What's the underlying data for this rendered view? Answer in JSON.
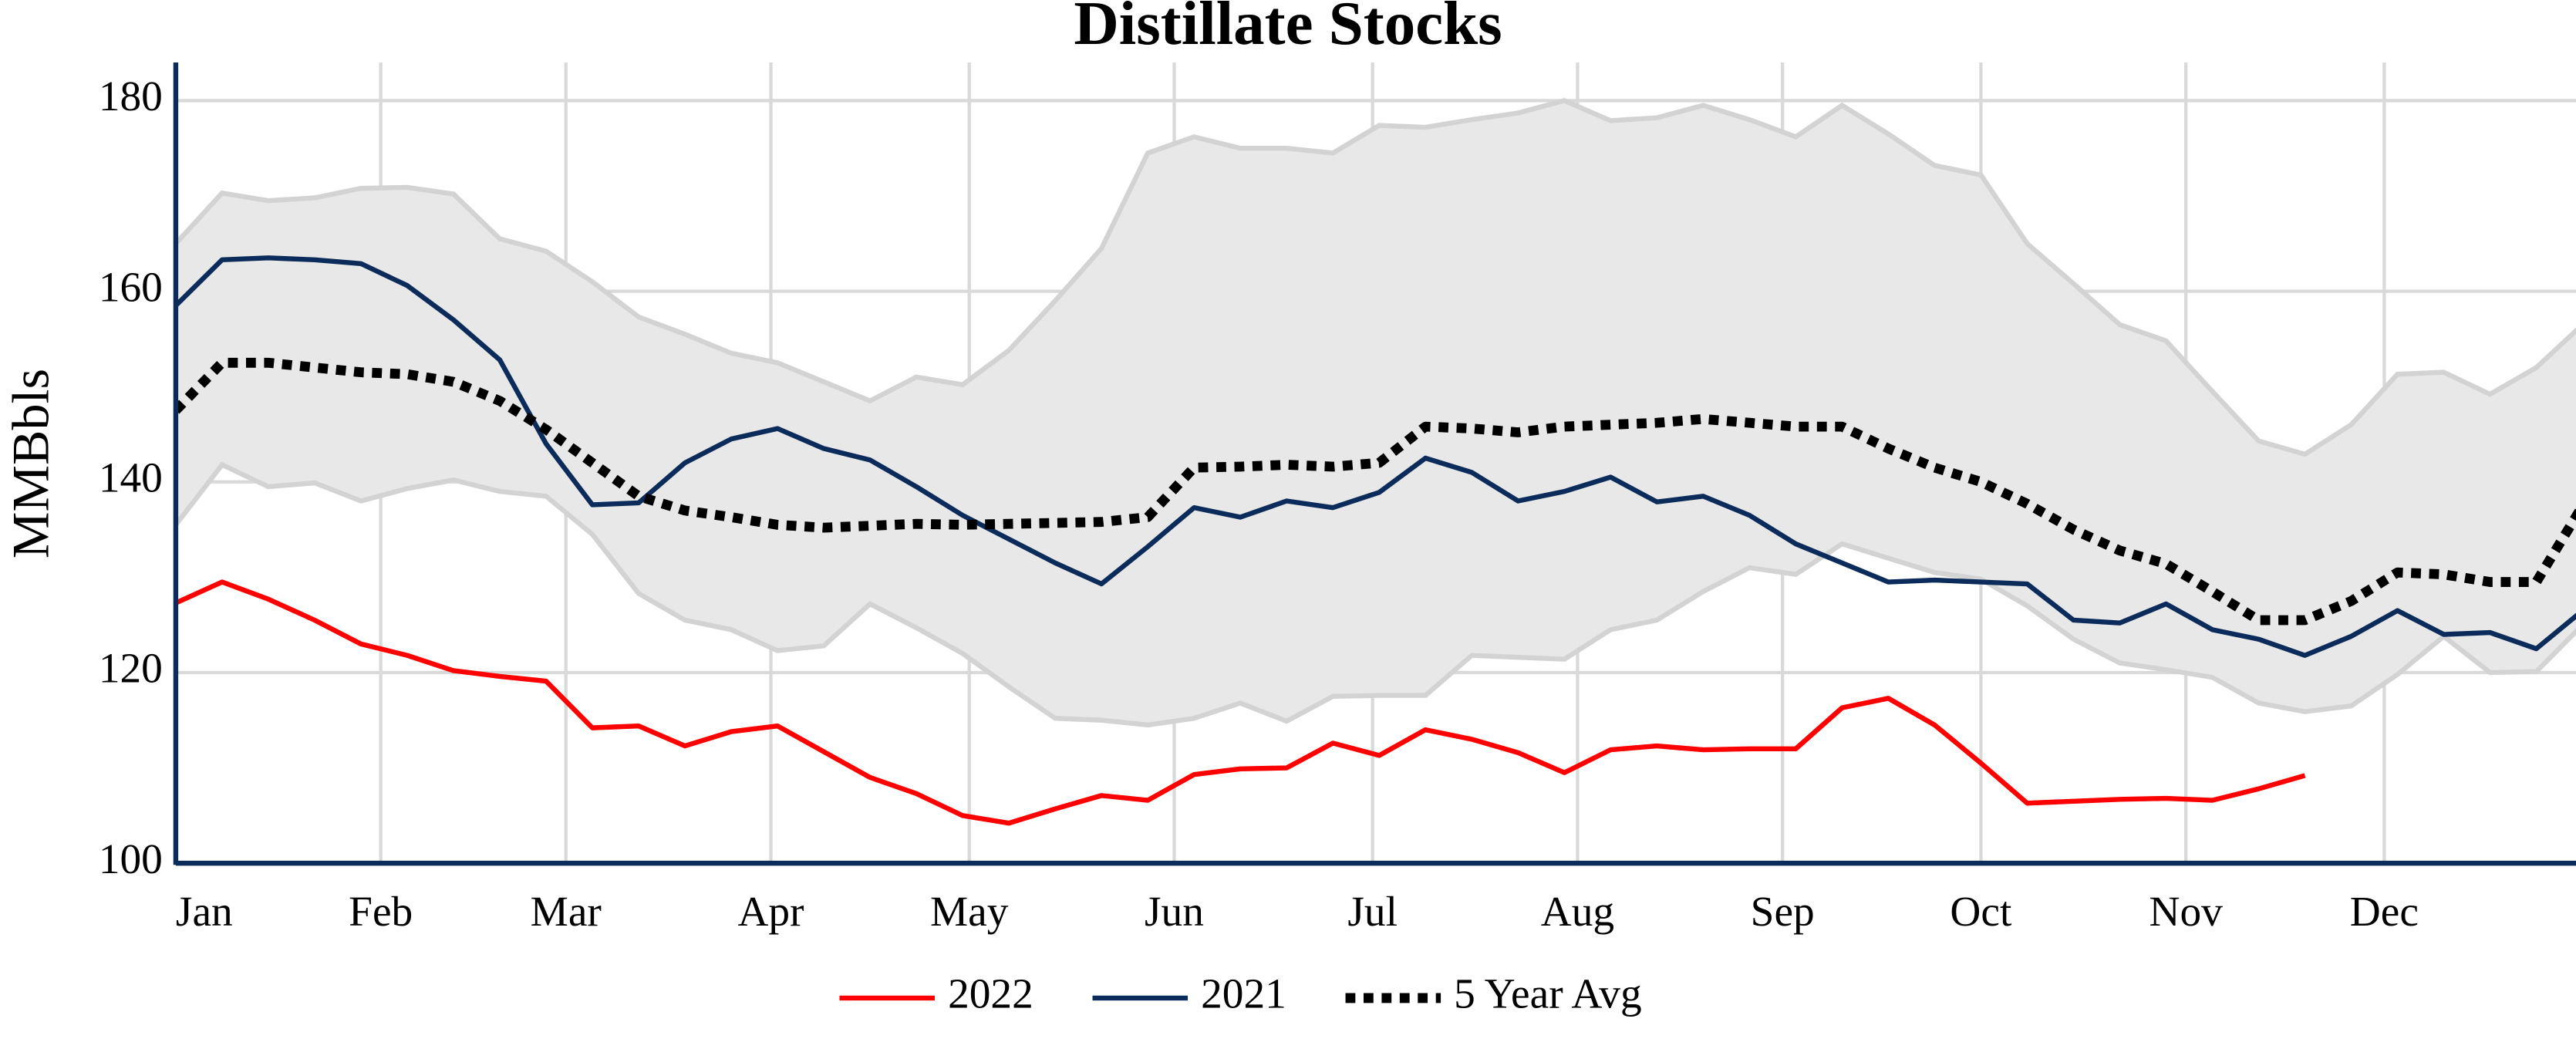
{
  "chart_data": {
    "type": "line",
    "title": "Distillate Stocks",
    "y_label": "MMBbls",
    "x": [
      0,
      7,
      14,
      21,
      28,
      35,
      42,
      49,
      56,
      63,
      70,
      77,
      84,
      91,
      98,
      105,
      112,
      119,
      126,
      133,
      140,
      147,
      154,
      161,
      168,
      175,
      182,
      189,
      196,
      203,
      210,
      217,
      224,
      231,
      238,
      245,
      252,
      259,
      266,
      273,
      280,
      287,
      294,
      301,
      308,
      315,
      322,
      329,
      336,
      343,
      350,
      357,
      364
    ],
    "xlim": [
      0,
      363
    ],
    "xticks": [
      {
        "value": 0,
        "label": "Jan"
      },
      {
        "value": 31,
        "label": "Feb"
      },
      {
        "value": 59,
        "label": "Mar"
      },
      {
        "value": 90,
        "label": "Apr"
      },
      {
        "value": 120,
        "label": "May"
      },
      {
        "value": 151,
        "label": "Jun"
      },
      {
        "value": 181,
        "label": "Jul"
      },
      {
        "value": 212,
        "label": "Aug"
      },
      {
        "value": 243,
        "label": "Sep"
      },
      {
        "value": 273,
        "label": "Oct"
      },
      {
        "value": 304,
        "label": "Nov"
      },
      {
        "value": 334,
        "label": "Dec"
      }
    ],
    "ylim": [
      100,
      184
    ],
    "yticks": [
      100,
      120,
      140,
      160,
      180
    ],
    "grid": true,
    "legend": "bottom",
    "band": {
      "color": "#e8e8e8",
      "edge_color": "#d3d3d3",
      "upper": [
        165,
        170.3,
        169.5,
        169.8,
        170.8,
        170.9,
        170.2,
        165.5,
        164.2,
        161,
        157.3,
        155.5,
        153.5,
        152.5,
        150.5,
        148.5,
        151,
        150.2,
        153.8,
        159,
        164.5,
        174.5,
        176.2,
        175,
        175,
        174.5,
        177.4,
        177.2,
        178,
        178.7,
        180,
        177.9,
        178.2,
        179.5,
        178,
        176.2,
        179.5,
        176.5,
        173.2,
        172.2,
        165,
        160.8,
        156.5,
        154.8,
        149.5,
        144.3,
        142.9,
        146,
        151.3,
        151.5,
        149.2,
        152,
        156.5
      ],
      "lower": [
        135.5,
        141.8,
        139.5,
        139.9,
        138,
        139.3,
        140.2,
        139,
        138.5,
        134.5,
        128.3,
        125.5,
        124.5,
        122.3,
        122.8,
        127.2,
        124.7,
        122,
        118.5,
        115.2,
        115,
        114.5,
        115.2,
        116.8,
        114.9,
        117.5,
        117.6,
        117.6,
        121.8,
        121.6,
        121.4,
        124.5,
        125.5,
        128.5,
        131,
        130.3,
        133.5,
        132,
        130.5,
        129.8,
        127,
        123.5,
        121,
        120.3,
        119.5,
        116.8,
        115.9,
        116.5,
        119.8,
        123.8,
        120,
        120.1,
        125
      ]
    },
    "series": [
      {
        "name": "2022",
        "color": "#ff0000",
        "dash": "solid",
        "values": [
          127.3,
          129.5,
          127.7,
          125.5,
          123,
          121.8,
          120.2,
          119.6,
          119.1,
          114.2,
          114.4,
          112.3,
          113.8,
          114.4,
          111.7,
          109,
          107.3,
          105,
          104.2,
          105.7,
          107.1,
          106.6,
          109.3,
          109.9,
          110,
          112.6,
          111.3,
          114,
          113,
          111.6,
          109.5,
          111.9,
          112.3,
          111.9,
          112,
          112,
          116.3,
          117.3,
          114.5,
          110.5,
          106.3,
          106.5,
          106.7,
          106.8,
          106.6,
          107.8,
          109.2,
          null,
          null,
          null,
          null,
          null,
          null
        ]
      },
      {
        "name": "2021",
        "color": "#0b2c5a",
        "dash": "solid",
        "values": [
          158.5,
          163.3,
          163.5,
          163.3,
          162.9,
          160.6,
          157,
          152.8,
          144,
          137.6,
          137.8,
          142,
          144.5,
          145.6,
          143.5,
          142.3,
          139.5,
          136.5,
          134,
          131.5,
          129.3,
          133.2,
          137.3,
          136.3,
          138,
          137.3,
          138.9,
          142.5,
          141,
          138,
          139,
          140.5,
          137.9,
          138.5,
          136.5,
          133.5,
          131.5,
          129.5,
          129.7,
          129.5,
          129.3,
          125.5,
          125.2,
          127.2,
          124.5,
          123.5,
          121.8,
          123.8,
          126.5,
          124,
          124.2,
          122.5,
          126.5
        ]
      },
      {
        "name": "5 Year Avg",
        "color": "#000000",
        "dash": "dotted",
        "values": [
          147.5,
          152.5,
          152.5,
          152,
          151.5,
          151.3,
          150.5,
          148.5,
          145.5,
          142,
          138.5,
          137,
          136.3,
          135.5,
          135.2,
          135.4,
          135.6,
          135.5,
          135.6,
          135.7,
          135.8,
          136.3,
          141.5,
          141.6,
          141.8,
          141.6,
          142,
          145.8,
          145.6,
          145.2,
          145.8,
          146,
          146.2,
          146.6,
          146.2,
          145.8,
          145.8,
          143.5,
          141.5,
          140,
          137.7,
          135,
          132.8,
          131.4,
          128.5,
          125.5,
          125.5,
          127.5,
          130.5,
          130.3,
          129.5,
          129.5,
          137.5
        ]
      }
    ]
  }
}
